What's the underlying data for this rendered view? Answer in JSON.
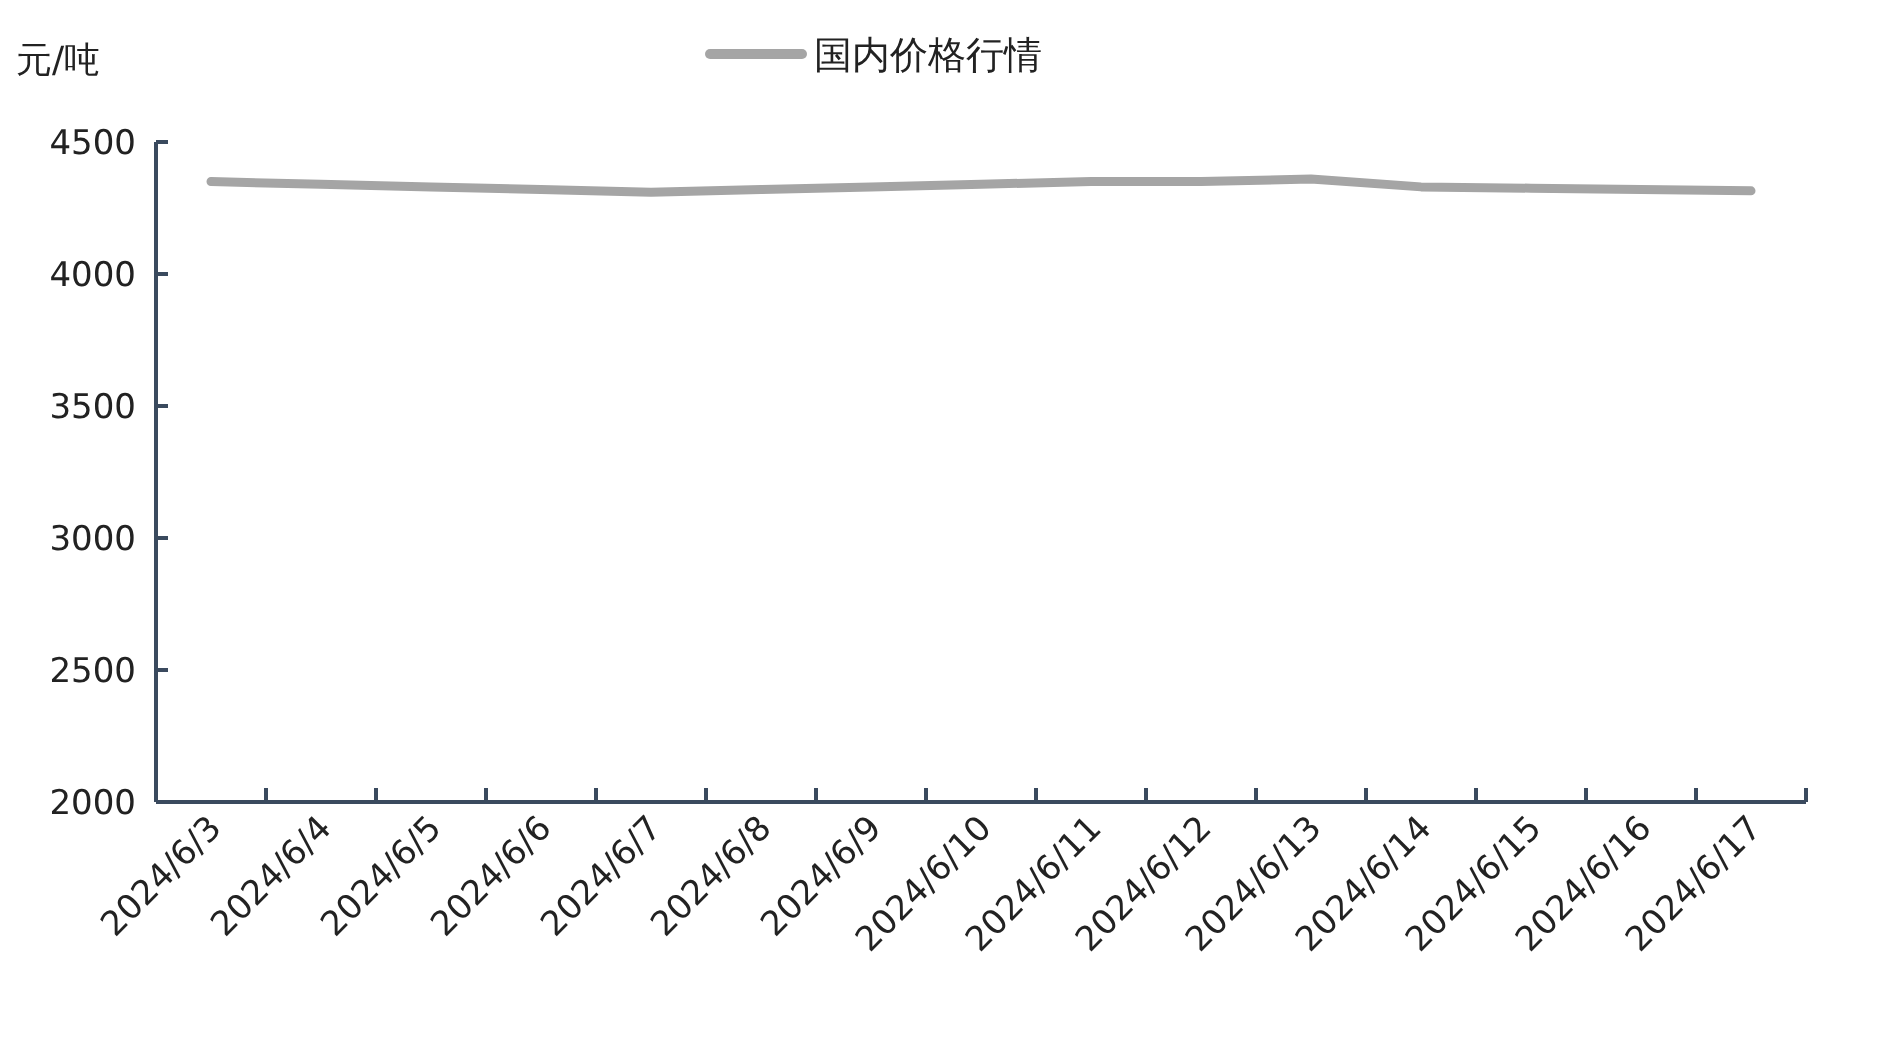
{
  "chart_data": {
    "type": "line",
    "ylabel": "元/吨",
    "legend": "top",
    "grid": false,
    "marker": "none",
    "line_style": "solid",
    "categories": [
      "2024/6/3",
      "2024/6/4",
      "2024/6/5",
      "2024/6/6",
      "2024/6/7",
      "2024/6/8",
      "2024/6/9",
      "2024/6/10",
      "2024/6/11",
      "2024/6/12",
      "2024/6/13",
      "2024/6/14",
      "2024/6/15",
      "2024/6/16",
      "2024/6/17"
    ],
    "series": [
      {
        "name": "国内价格行情",
        "color": "#a5a5a5",
        "values": [
          4350,
          4340,
          4330,
          4320,
          4310,
          4320,
          4330,
          4340,
          4350,
          4350,
          4360,
          4330,
          4325,
          4320,
          4315
        ]
      }
    ],
    "ylim": [
      2000,
      4500
    ],
    "yticks": [
      2000,
      2500,
      3000,
      3500,
      4000,
      4500
    ]
  }
}
